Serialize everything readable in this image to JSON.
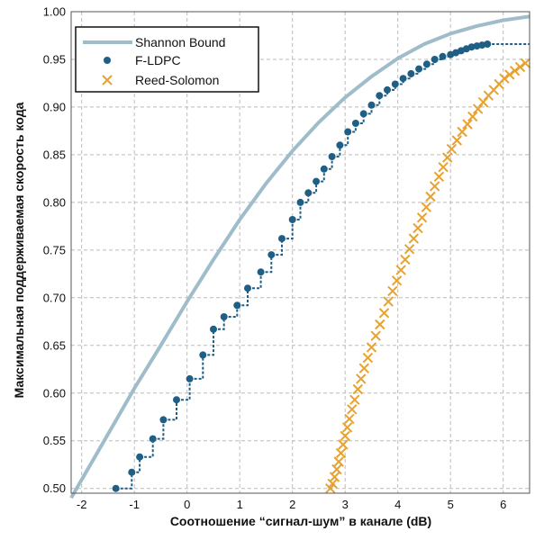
{
  "chart_data": {
    "type": "line",
    "title": "",
    "xlabel": "Соотношение “сигнал-шум” в канале (dB)",
    "ylabel": "Максимальная поддерживаемая скорость кода",
    "xlim": [
      -2.2,
      6.5
    ],
    "ylim": [
      0.495,
      1.0
    ],
    "xticks": [
      -2,
      -1,
      0,
      1,
      2,
      3,
      4,
      5,
      6
    ],
    "xtick_labels": [
      "-2",
      "-1",
      "0",
      "1",
      "2",
      "3",
      "4",
      "5",
      "6"
    ],
    "yticks": [
      0.5,
      0.55,
      0.6,
      0.65,
      0.7,
      0.75,
      0.8,
      0.85,
      0.9,
      0.95,
      1.0
    ],
    "ytick_labels": [
      "0.50",
      "0.55",
      "0.60",
      "0.65",
      "0.70",
      "0.75",
      "0.80",
      "0.85",
      "0.90",
      "0.95",
      "1.00"
    ],
    "grid": true,
    "legend_position": "top-left",
    "colors": {
      "shannon": "#9fbccb",
      "fldpc": "#1f5f86",
      "rs": "#e6a232",
      "grid": "#bbbbbb"
    },
    "series": [
      {
        "name": "Shannon Bound",
        "style": "line",
        "x": [
          -2.2,
          -1.5,
          -1.0,
          -0.5,
          0.0,
          0.5,
          1.0,
          1.5,
          2.0,
          2.5,
          3.0,
          3.5,
          4.0,
          4.5,
          5.0,
          5.5,
          6.0,
          6.5
        ],
        "y": [
          0.49,
          0.557,
          0.605,
          0.65,
          0.696,
          0.74,
          0.782,
          0.82,
          0.854,
          0.884,
          0.91,
          0.932,
          0.951,
          0.966,
          0.977,
          0.985,
          0.991,
          0.995
        ]
      },
      {
        "name": "F-LDPC",
        "style": "dots-step",
        "x": [
          -1.35,
          -1.05,
          -0.9,
          -0.65,
          -0.45,
          -0.2,
          0.05,
          0.3,
          0.5,
          0.7,
          0.95,
          1.15,
          1.4,
          1.6,
          1.8,
          2.0,
          2.15,
          2.3,
          2.45,
          2.6,
          2.75,
          2.9,
          3.05,
          3.2,
          3.35,
          3.5,
          3.65,
          3.8,
          3.95,
          4.1,
          4.25,
          4.4,
          4.55,
          4.7,
          4.85,
          5.0,
          5.1,
          5.2,
          5.3,
          5.4,
          5.5,
          5.6,
          5.7
        ],
        "y": [
          0.5,
          0.517,
          0.533,
          0.552,
          0.572,
          0.593,
          0.615,
          0.64,
          0.667,
          0.68,
          0.692,
          0.71,
          0.727,
          0.745,
          0.762,
          0.782,
          0.8,
          0.81,
          0.822,
          0.835,
          0.848,
          0.86,
          0.874,
          0.883,
          0.893,
          0.902,
          0.912,
          0.918,
          0.924,
          0.93,
          0.935,
          0.94,
          0.945,
          0.95,
          0.953,
          0.955,
          0.957,
          0.959,
          0.961,
          0.963,
          0.964,
          0.965,
          0.966
        ]
      },
      {
        "name": "Reed-Solomon",
        "style": "markers-x",
        "x": [
          2.72,
          2.76,
          2.8,
          2.84,
          2.88,
          2.92,
          2.96,
          3.0,
          3.04,
          3.08,
          3.13,
          3.18,
          3.24,
          3.3,
          3.36,
          3.43,
          3.5,
          3.58,
          3.66,
          3.74,
          3.82,
          3.9,
          3.98,
          4.06,
          4.14,
          4.22,
          4.3,
          4.38,
          4.46,
          4.54,
          4.62,
          4.7,
          4.78,
          4.86,
          4.94,
          5.02,
          5.12,
          5.22,
          5.32,
          5.42,
          5.52,
          5.62,
          5.72,
          5.82,
          5.92,
          6.02,
          6.12,
          6.22,
          6.32,
          6.42,
          6.52
        ],
        "y": [
          0.5,
          0.505,
          0.512,
          0.52,
          0.528,
          0.537,
          0.546,
          0.555,
          0.564,
          0.573,
          0.583,
          0.593,
          0.604,
          0.615,
          0.626,
          0.637,
          0.648,
          0.66,
          0.672,
          0.684,
          0.696,
          0.707,
          0.718,
          0.729,
          0.74,
          0.751,
          0.762,
          0.773,
          0.784,
          0.795,
          0.806,
          0.817,
          0.827,
          0.837,
          0.847,
          0.856,
          0.865,
          0.874,
          0.882,
          0.89,
          0.898,
          0.905,
          0.912,
          0.918,
          0.924,
          0.93,
          0.934,
          0.938,
          0.942,
          0.946,
          0.95
        ]
      }
    ]
  }
}
